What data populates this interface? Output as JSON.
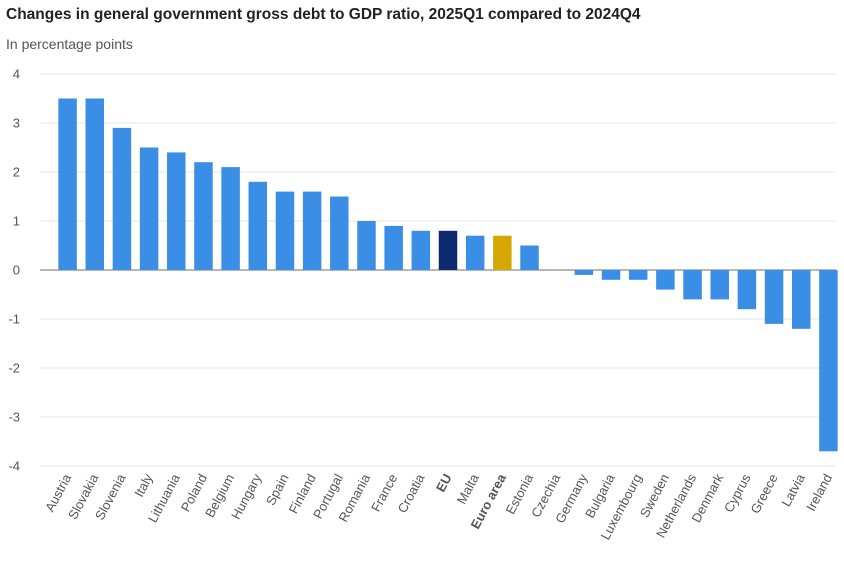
{
  "chart_data": {
    "type": "bar",
    "title": "Changes in general government gross debt to GDP ratio, 2025Q1 compared to 2024Q4",
    "subtitle": "In percentage points",
    "categories": [
      "Austria",
      "Slovakia",
      "Slovenia",
      "Italy",
      "Lithuania",
      "Poland",
      "Belgium",
      "Hungary",
      "Spain",
      "Finland",
      "Portugal",
      "Romania",
      "France",
      "Croatia",
      "EU",
      "Malta",
      "Euro area",
      "Estonia",
      "Czechia",
      "Germany",
      "Bulgaria",
      "Luxembourg",
      "Sweden",
      "Netherlands",
      "Denmark",
      "Cyprus",
      "Greece",
      "Latvia",
      "Ireland"
    ],
    "values": [
      3.5,
      3.5,
      2.9,
      2.5,
      2.4,
      2.2,
      2.1,
      1.8,
      1.6,
      1.6,
      1.5,
      1.0,
      0.9,
      0.8,
      0.8,
      0.7,
      0.7,
      0.5,
      0.0,
      -0.1,
      -0.2,
      -0.2,
      -0.4,
      -0.6,
      -0.6,
      -0.8,
      -1.1,
      -1.2,
      -3.7
    ],
    "highlight": {
      "EU": "#0b2a70",
      "Euro area": "#d4a800"
    },
    "bold_categories": [
      "EU",
      "Euro area"
    ],
    "bar_color": "#3a8ee6",
    "yticks": [
      4,
      3,
      2,
      1,
      0,
      -1,
      -2,
      -3,
      -4
    ],
    "ylim": [
      -4,
      4
    ],
    "grid": true,
    "legend": "none"
  }
}
